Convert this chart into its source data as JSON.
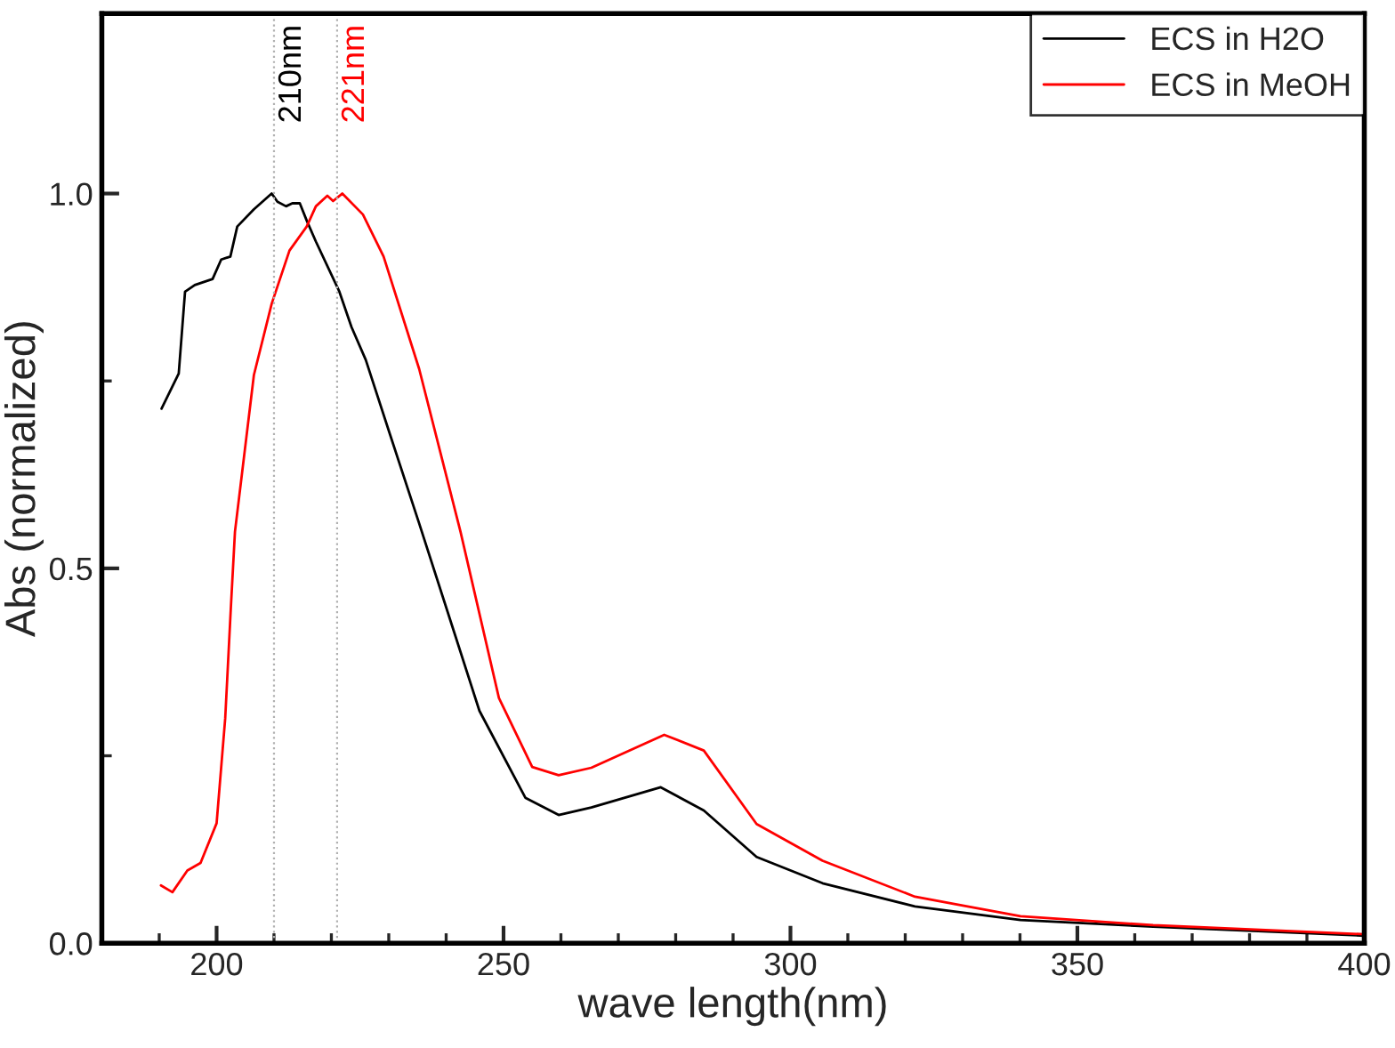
{
  "chart_data": {
    "type": "line",
    "xlabel": "wave length(nm)",
    "ylabel": "Abs (normalized)",
    "xlim": [
      180,
      400
    ],
    "ylim": [
      0,
      1.24
    ],
    "xticks": [
      {
        "value": 190,
        "label": null
      },
      200,
      {
        "value": 210,
        "label": null
      },
      {
        "value": 220,
        "label": null
      },
      {
        "value": 230,
        "label": null
      },
      {
        "value": 240,
        "label": null
      },
      250,
      {
        "value": 260,
        "label": null
      },
      {
        "value": 270,
        "label": null
      },
      {
        "value": 280,
        "label": null
      },
      {
        "value": 290,
        "label": null
      },
      300,
      {
        "value": 310,
        "label": null
      },
      {
        "value": 320,
        "label": null
      },
      {
        "value": 330,
        "label": null
      },
      {
        "value": 340,
        "label": null
      },
      350,
      {
        "value": 360,
        "label": null
      },
      {
        "value": 370,
        "label": null
      },
      {
        "value": 380,
        "label": null
      },
      {
        "value": 390,
        "label": null
      },
      400
    ],
    "yticks": [
      {
        "value": 0,
        "label": "0.0"
      },
      {
        "value": 0.25,
        "label": null
      },
      0.5,
      {
        "value": 0.75,
        "label": null
      },
      {
        "value": 1.0,
        "label": "1.0"
      }
    ],
    "grid": false,
    "legend": "top right",
    "series": [
      {
        "name": "ECS in H2O",
        "color": "#000000",
        "x": [
          190.4,
          193.4,
          194.5,
          196.2,
          199.3,
          200.8,
          202.4,
          203.6,
          206.5,
          209.6,
          210.6,
          212.1,
          213.2,
          214.5,
          215.7,
          217.3,
          221.4,
          223.5,
          226,
          230.2,
          235.3,
          245.8,
          253.8,
          259.6,
          265.3,
          277.4,
          284.9,
          294.1,
          305.6,
          321.7,
          340.1,
          363.2,
          400
        ],
        "values": [
          0.713,
          0.76,
          0.869,
          0.878,
          0.886,
          0.912,
          0.916,
          0.956,
          0.979,
          1.0,
          0.989,
          0.983,
          0.987,
          0.987,
          0.964,
          0.936,
          0.869,
          0.822,
          0.778,
          0.679,
          0.56,
          0.31,
          0.194,
          0.171,
          0.181,
          0.208,
          0.177,
          0.115,
          0.08,
          0.049,
          0.031,
          0.022,
          0.01
        ]
      },
      {
        "name": "ECS in MeOH",
        "color": "#ff0000",
        "x": [
          190.3,
          192.3,
          194.9,
          197.2,
          200,
          201.5,
          202.5,
          203.2,
          206.5,
          209.6,
          212.7,
          215.7,
          217.3,
          219.3,
          220.3,
          221.9,
          225.5,
          229.1,
          235.3,
          242.5,
          249.2,
          255,
          259.6,
          265.3,
          278,
          284.9,
          294.1,
          305.6,
          321.7,
          340.1,
          363.2,
          400
        ],
        "values": [
          0.077,
          0.068,
          0.097,
          0.107,
          0.16,
          0.3,
          0.45,
          0.549,
          0.758,
          0.853,
          0.924,
          0.956,
          0.983,
          0.997,
          0.99,
          1.0,
          0.972,
          0.916,
          0.766,
          0.549,
          0.327,
          0.235,
          0.224,
          0.234,
          0.278,
          0.257,
          0.159,
          0.11,
          0.062,
          0.036,
          0.024,
          0.012
        ]
      }
    ],
    "ref_lines": [
      {
        "axis": "x",
        "value": 210,
        "label": "210nm",
        "color": "#b0b0b0",
        "line_style": "dotted"
      },
      {
        "axis": "x",
        "value": 221,
        "label": "221nm",
        "color": "#b0b0b0",
        "line_style": "dotted"
      }
    ]
  }
}
